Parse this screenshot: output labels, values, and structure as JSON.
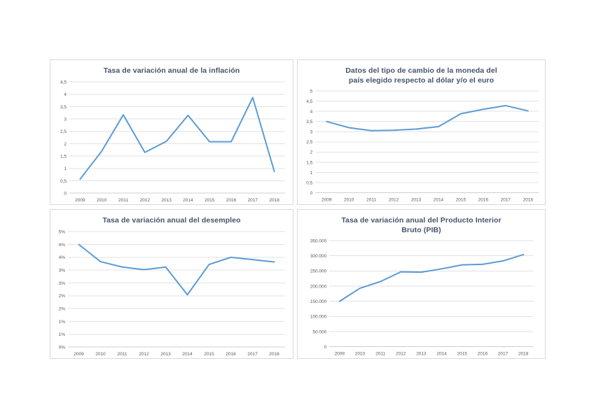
{
  "page": {
    "background": "#ffffff"
  },
  "style": {
    "line_color": "#5b9bd5",
    "title_color": "#44546a",
    "tick_color": "#595959",
    "grid_color": "#e2e2e2",
    "axis_color": "#cfcfcf",
    "panel_border": "#d9d9d9"
  },
  "chart_data": [
    {
      "id": "inflacion",
      "type": "line",
      "title": "Tasa de variación anual de la inflación",
      "title_lines": [
        "Tasa de variación anual de la inflación"
      ],
      "categories": [
        "2009",
        "2010",
        "2011",
        "2012",
        "2013",
        "2014",
        "2015",
        "2016",
        "2017",
        "2018"
      ],
      "values": [
        0.57,
        1.7,
        3.17,
        1.65,
        2.1,
        3.15,
        2.08,
        2.08,
        3.87,
        0.88
      ],
      "ylim": [
        0,
        4.5
      ],
      "yticks": [
        {
          "v": 0,
          "label": "0"
        },
        {
          "v": 0.5,
          "label": "0,5"
        },
        {
          "v": 1,
          "label": "1"
        },
        {
          "v": 1.5,
          "label": "1,5"
        },
        {
          "v": 2,
          "label": "2"
        },
        {
          "v": 2.5,
          "label": "2,5"
        },
        {
          "v": 3,
          "label": "3"
        },
        {
          "v": 3.5,
          "label": "3,5"
        },
        {
          "v": 4,
          "label": "4"
        },
        {
          "v": 4.5,
          "label": "4,5"
        }
      ],
      "xlabel": "",
      "ylabel": "",
      "grid": true,
      "legend": "none"
    },
    {
      "id": "tipo-cambio",
      "type": "line",
      "title": "Datos del tipo de cambio de la moneda del país elegido respecto al dólar y/o el euro",
      "title_lines": [
        "Datos del tipo de cambio de la moneda del",
        "país elegido respecto al dólar y/o el euro"
      ],
      "categories": [
        "2009",
        "2010",
        "2011",
        "2012",
        "2013",
        "2014",
        "2015",
        "2016",
        "2017",
        "2018"
      ],
      "values": [
        3.5,
        3.2,
        3.05,
        3.07,
        3.13,
        3.25,
        3.88,
        4.1,
        4.28,
        4.02
      ],
      "ylim": [
        0,
        5
      ],
      "yticks": [
        {
          "v": 0,
          "label": "0"
        },
        {
          "v": 0.5,
          "label": "0,5"
        },
        {
          "v": 1,
          "label": "1"
        },
        {
          "v": 1.5,
          "label": "1,5"
        },
        {
          "v": 2,
          "label": "2"
        },
        {
          "v": 2.5,
          "label": "2,5"
        },
        {
          "v": 3,
          "label": "3"
        },
        {
          "v": 3.5,
          "label": "3,5"
        },
        {
          "v": 4,
          "label": "4"
        },
        {
          "v": 4.5,
          "label": "4,5"
        },
        {
          "v": 5,
          "label": "5"
        }
      ],
      "xlabel": "",
      "ylabel": "",
      "grid": true,
      "legend": "none"
    },
    {
      "id": "desempleo",
      "type": "line",
      "title": "Tasa de variación anual del desempleo",
      "title_lines": [
        "Tasa de variación anual del desempleo"
      ],
      "categories": [
        "2009",
        "2010",
        "2011",
        "2012",
        "2013",
        "2014",
        "2015",
        "2016",
        "2017",
        "2018"
      ],
      "values": [
        4.0,
        3.33,
        3.12,
        3.02,
        3.12,
        2.04,
        3.22,
        3.5,
        3.41,
        3.32
      ],
      "ylim": [
        0,
        4.5
      ],
      "yticks": [
        {
          "v": 0,
          "label": "0%"
        },
        {
          "v": 0.5,
          "label": "1%"
        },
        {
          "v": 1,
          "label": "1%"
        },
        {
          "v": 1.5,
          "label": "2%"
        },
        {
          "v": 2,
          "label": "2%"
        },
        {
          "v": 2.5,
          "label": "3%"
        },
        {
          "v": 3,
          "label": "3%"
        },
        {
          "v": 3.5,
          "label": "4%"
        },
        {
          "v": 4,
          "label": "4%"
        },
        {
          "v": 4.5,
          "label": "5%"
        }
      ],
      "xlabel": "",
      "ylabel": "",
      "grid": true,
      "legend": "none"
    },
    {
      "id": "pib",
      "type": "line",
      "title": "Tasa de variación anual del Producto Interior Bruto (PIB)",
      "title_lines": [
        "Tasa de variación anual del Producto Interior",
        "Bruto (PIB)"
      ],
      "categories": [
        "2009",
        "2010",
        "2011",
        "2012",
        "2013",
        "2014",
        "2015",
        "2016",
        "2017",
        "2018"
      ],
      "values": [
        150000,
        193000,
        215000,
        247000,
        246000,
        257000,
        270000,
        272000,
        283000,
        304000
      ],
      "ylim": [
        0,
        350000
      ],
      "yticks": [
        {
          "v": 0,
          "label": "0"
        },
        {
          "v": 50000,
          "label": "50.000"
        },
        {
          "v": 100000,
          "label": "100.000"
        },
        {
          "v": 150000,
          "label": "150.000"
        },
        {
          "v": 200000,
          "label": "200.000"
        },
        {
          "v": 250000,
          "label": "250.000"
        },
        {
          "v": 300000,
          "label": "300.000"
        },
        {
          "v": 350000,
          "label": "350.000"
        }
      ],
      "xlabel": "",
      "ylabel": "",
      "grid": true,
      "legend": "none"
    }
  ]
}
